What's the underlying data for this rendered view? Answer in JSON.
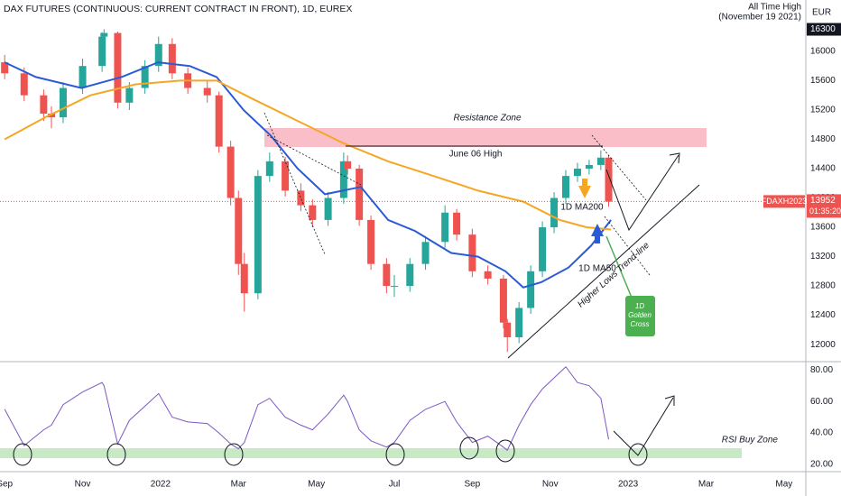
{
  "chart_data": {
    "type": "candlestick",
    "title": "DAX FUTURES (CONTINUOUS: CURRENT CONTRACT IN FRONT), 1D, EUREX",
    "currency": "EUR",
    "symbol": "FDAXH2023",
    "last_price": 13952,
    "countdown": "01:35:20",
    "ath": 16300,
    "annotations": {
      "ath": [
        "All Time High",
        "(November 19 2021)"
      ],
      "resistance": "Resistance Zone",
      "june_high": "June 06 High",
      "trend_line": "Higher Lows Trend-line",
      "golden_cross": [
        "1D",
        "Golden",
        "Cross"
      ],
      "rsi_zone": "RSI Buy Zone"
    },
    "xlim": [
      -0.12,
      20.56
    ],
    "xticks": [
      {
        "value": 0,
        "label": "Sep"
      },
      {
        "value": 2,
        "label": "Nov"
      },
      {
        "value": 4,
        "label": "2022"
      },
      {
        "value": 6,
        "label": "Mar"
      },
      {
        "value": 8,
        "label": "May"
      },
      {
        "value": 10,
        "label": "Jul"
      },
      {
        "value": 12,
        "label": "Sep"
      },
      {
        "value": 14,
        "label": "Nov"
      },
      {
        "value": 16,
        "label": "2023"
      },
      {
        "value": 18,
        "label": "Mar"
      },
      {
        "value": 20,
        "label": "May"
      }
    ],
    "ylim": [
      11780,
      16700
    ],
    "yticks": [
      12000,
      12400,
      12800,
      13200,
      13600,
      14000,
      14400,
      14800,
      15200,
      15600,
      16000
    ],
    "up_color": "#26a69a",
    "down_color": "#ef5350",
    "x": [
      0,
      0.5,
      1.0,
      1.2,
      1.5,
      2.0,
      2.5,
      2.55,
      2.9,
      3.2,
      3.6,
      3.95,
      4.3,
      4.7,
      5.2,
      5.5,
      5.8,
      6.0,
      6.15,
      6.5,
      6.8,
      7.2,
      7.6,
      7.9,
      8.3,
      8.7,
      8.8,
      9.1,
      9.4,
      9.8,
      10.0,
      10.4,
      10.8,
      11.3,
      11.6,
      12.0,
      12.4,
      12.8,
      12.9,
      13.2,
      13.5,
      13.8,
      14.1,
      14.4,
      14.7,
      15.0,
      15.3,
      15.5
    ],
    "open": [
      15850,
      15700,
      15400,
      15150,
      15100,
      15500,
      15800,
      16200,
      16250,
      15300,
      15500,
      15800,
      16100,
      15700,
      15500,
      15400,
      14700,
      14000,
      13100,
      12700,
      14300,
      14500,
      14100,
      13900,
      13700,
      14000,
      14500,
      14400,
      13700,
      13100,
      12800,
      12800,
      13100,
      13400,
      13800,
      13500,
      13000,
      12900,
      12300,
      12100,
      12500,
      13000,
      13600,
      14000,
      14300,
      14400,
      14450,
      14550
    ],
    "high": [
      15950,
      15780,
      15480,
      15250,
      15580,
      15900,
      16260,
      16300,
      16270,
      15580,
      15880,
      16200,
      16180,
      15780,
      15600,
      15450,
      14780,
      14100,
      13250,
      14380,
      14620,
      14560,
      14200,
      13980,
      14080,
      14620,
      14580,
      14450,
      13760,
      13180,
      12950,
      13180,
      13480,
      13900,
      13850,
      13580,
      13080,
      12950,
      12350,
      12580,
      13080,
      13680,
      14080,
      14380,
      14480,
      14520,
      14650,
      14580
    ],
    "low": [
      15620,
      15320,
      15050,
      14950,
      15020,
      15420,
      15720,
      16120,
      15220,
      15200,
      15420,
      15720,
      15620,
      15420,
      15300,
      14620,
      13900,
      12950,
      12450,
      12620,
      14220,
      14020,
      13820,
      13600,
      13620,
      13920,
      14320,
      13620,
      13020,
      12700,
      12650,
      12720,
      13020,
      13320,
      13420,
      12920,
      12820,
      12220,
      11900,
      12020,
      12420,
      12920,
      13520,
      13920,
      14220,
      14320,
      14380,
      13880
    ],
    "close": [
      15700,
      15400,
      15150,
      15100,
      15500,
      15800,
      16200,
      16250,
      15300,
      15500,
      15800,
      16100,
      15700,
      15500,
      15400,
      14700,
      14000,
      13100,
      12700,
      14300,
      14500,
      14100,
      13900,
      13700,
      14000,
      14500,
      14400,
      13700,
      13100,
      12800,
      12800,
      13100,
      13400,
      13800,
      13500,
      13000,
      12900,
      12300,
      12100,
      12500,
      13000,
      13600,
      14000,
      14300,
      14400,
      14450,
      14550,
      13950
    ],
    "series": [
      {
        "name": "1D MA50",
        "color": "#2a5bd7",
        "x": [
          0,
          0.8,
          1.97,
          3.0,
          3.94,
          4.75,
          5.44,
          6.13,
          6.83,
          7.52,
          8.22,
          9.14,
          9.84,
          10.53,
          11.46,
          12.15,
          12.85,
          13.31,
          13.77,
          14.47,
          15.05,
          15.56
        ],
        "values": [
          15850,
          15650,
          15500,
          15650,
          15850,
          15800,
          15650,
          15200,
          14850,
          14400,
          14050,
          14150,
          13700,
          13550,
          13250,
          13200,
          13000,
          12780,
          12850,
          13050,
          13350,
          13700
        ]
      },
      {
        "name": "1D MA200",
        "color": "#f5a623",
        "x": [
          0,
          1.04,
          2.2,
          3.36,
          4.51,
          5.44,
          6.37,
          7.52,
          8.68,
          9.84,
          11.0,
          12.15,
          13.31,
          14.24,
          14.93,
          15.56
        ],
        "values": [
          14800,
          15100,
          15400,
          15550,
          15600,
          15600,
          15350,
          15050,
          14750,
          14500,
          14300,
          14100,
          13950,
          13700,
          13600,
          13570
        ]
      }
    ],
    "rsi": {
      "color": "#7e57c2",
      "ylim": [
        16,
        83
      ],
      "yticks": [
        {
          "value": 80,
          "label": "80.00"
        },
        {
          "value": 60,
          "label": "60.00"
        },
        {
          "value": 40,
          "label": "40.00"
        },
        {
          "value": 20,
          "label": "20.00"
        }
      ],
      "bands": [
        30,
        70
      ],
      "values": [
        55,
        32,
        42,
        45,
        58,
        66,
        72,
        70,
        33,
        48,
        57,
        65,
        50,
        47,
        46,
        40,
        33,
        30,
        34,
        58,
        62,
        50,
        45,
        42,
        52,
        64,
        60,
        42,
        35,
        31,
        34,
        48,
        55,
        60,
        47,
        34,
        38,
        31,
        29,
        45,
        58,
        68,
        75,
        82,
        72,
        70,
        62,
        36
      ]
    }
  }
}
